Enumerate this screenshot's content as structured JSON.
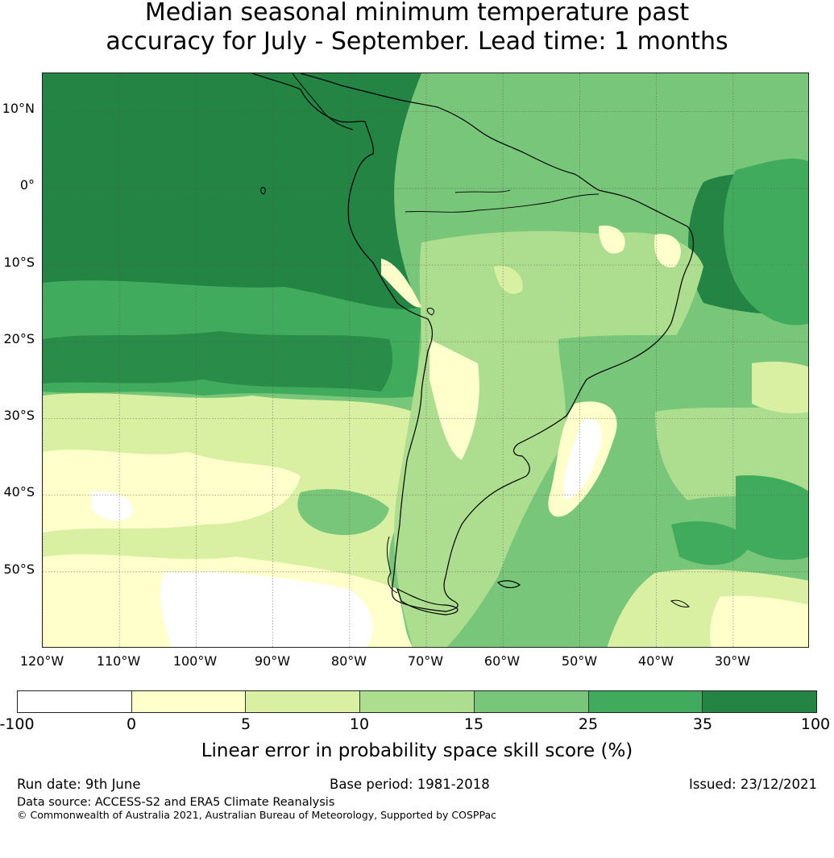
{
  "title": {
    "line1": "Median seasonal minimum temperature past",
    "line2": "accuracy for July - September. Lead time: 1 months"
  },
  "map": {
    "lat_labels": [
      "10°N",
      "0°",
      "10°S",
      "20°S",
      "30°S",
      "40°S",
      "50°S"
    ],
    "lon_labels": [
      "120°W",
      "110°W",
      "100°W",
      "90°W",
      "80°W",
      "70°W",
      "60°W",
      "50°W",
      "40°W",
      "30°W"
    ],
    "extent": {
      "lon_min": -120,
      "lon_max": -20,
      "lat_min": -60,
      "lat_max": 15
    },
    "region": "South America"
  },
  "colorbar": {
    "colors": [
      "#ffffff",
      "#ffffcc",
      "#d9f0a3",
      "#addd8e",
      "#78c679",
      "#41ab5d",
      "#238443"
    ],
    "ticks": [
      "-100",
      "0",
      "5",
      "10",
      "15",
      "25",
      "35",
      "100"
    ],
    "label": "Linear error in probability space skill score (%)"
  },
  "footer": {
    "run_date": "Run date: 9th June",
    "base_period": "Base period: 1981-2018",
    "issued": "Issued: 23/12/2021",
    "data_source": "Data source: ACCESS-S2 and ERA5 Climate Reanalysis",
    "copyright": "© Commonwealth of Australia 2021, Australian Bureau of Meteorology, Supported by COSPPac"
  }
}
